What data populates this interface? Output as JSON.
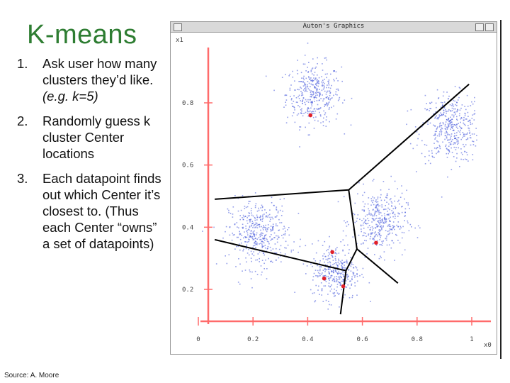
{
  "slide": {
    "title": "K-means",
    "steps": [
      {
        "num": "1.",
        "text": "Ask user how many\nclusters they’d like.",
        "example": "(e.g. k=5)"
      },
      {
        "num": "2.",
        "text": "Randomly guess k\ncluster Center\nlocations",
        "example": ""
      },
      {
        "num": "3.",
        "text": "Each datapoint finds\nout which Center it’s\nclosest to. (Thus\neach Center “owns”\na set of datapoints)",
        "example": ""
      }
    ],
    "source": "Source: A. Moore"
  },
  "window": {
    "title": "Auton's Graphics"
  },
  "chart_data": {
    "type": "scatter",
    "xlabel": "x0",
    "ylabel": "x1",
    "xlim": [
      0,
      1
    ],
    "ylim": [
      0.1,
      1.0
    ],
    "xticks": [
      "0",
      "0.2",
      "0.4",
      "0.6",
      "0.8",
      "1"
    ],
    "yticks": [
      "0.2",
      "0.4",
      "0.6",
      "0.8"
    ],
    "ytick_values": [
      0.2,
      0.4,
      0.6,
      0.8
    ],
    "xtick_values": [
      0,
      0.2,
      0.4,
      0.6,
      0.8,
      1
    ],
    "clusters": [
      {
        "cx": 0.42,
        "cy": 0.83,
        "spread": 0.05,
        "n": 380
      },
      {
        "cx": 0.92,
        "cy": 0.72,
        "spread": 0.055,
        "n": 420
      },
      {
        "cx": 0.22,
        "cy": 0.38,
        "spread": 0.055,
        "n": 420
      },
      {
        "cx": 0.66,
        "cy": 0.42,
        "spread": 0.05,
        "n": 380
      },
      {
        "cx": 0.5,
        "cy": 0.26,
        "spread": 0.045,
        "n": 340
      }
    ],
    "centers": [
      {
        "x": 0.41,
        "y": 0.76
      },
      {
        "x": 0.49,
        "y": 0.32
      },
      {
        "x": 0.65,
        "y": 0.35
      },
      {
        "x": 0.46,
        "y": 0.235
      },
      {
        "x": 0.53,
        "y": 0.21
      }
    ],
    "boundaries": [
      [
        [
          0.06,
          0.49
        ],
        [
          0.55,
          0.52
        ]
      ],
      [
        [
          0.55,
          0.52
        ],
        [
          0.99,
          0.86
        ]
      ],
      [
        [
          0.55,
          0.52
        ],
        [
          0.58,
          0.33
        ]
      ],
      [
        [
          0.06,
          0.36
        ],
        [
          0.54,
          0.26
        ]
      ],
      [
        [
          0.54,
          0.26
        ],
        [
          0.58,
          0.33
        ]
      ],
      [
        [
          0.58,
          0.33
        ],
        [
          0.73,
          0.22
        ]
      ],
      [
        [
          0.54,
          0.26
        ],
        [
          0.52,
          0.12
        ]
      ]
    ],
    "colors": {
      "points": "#3b4fd8",
      "centers": "#e0202a",
      "axes": "#ff6b6b",
      "boundary": "#000000"
    }
  }
}
